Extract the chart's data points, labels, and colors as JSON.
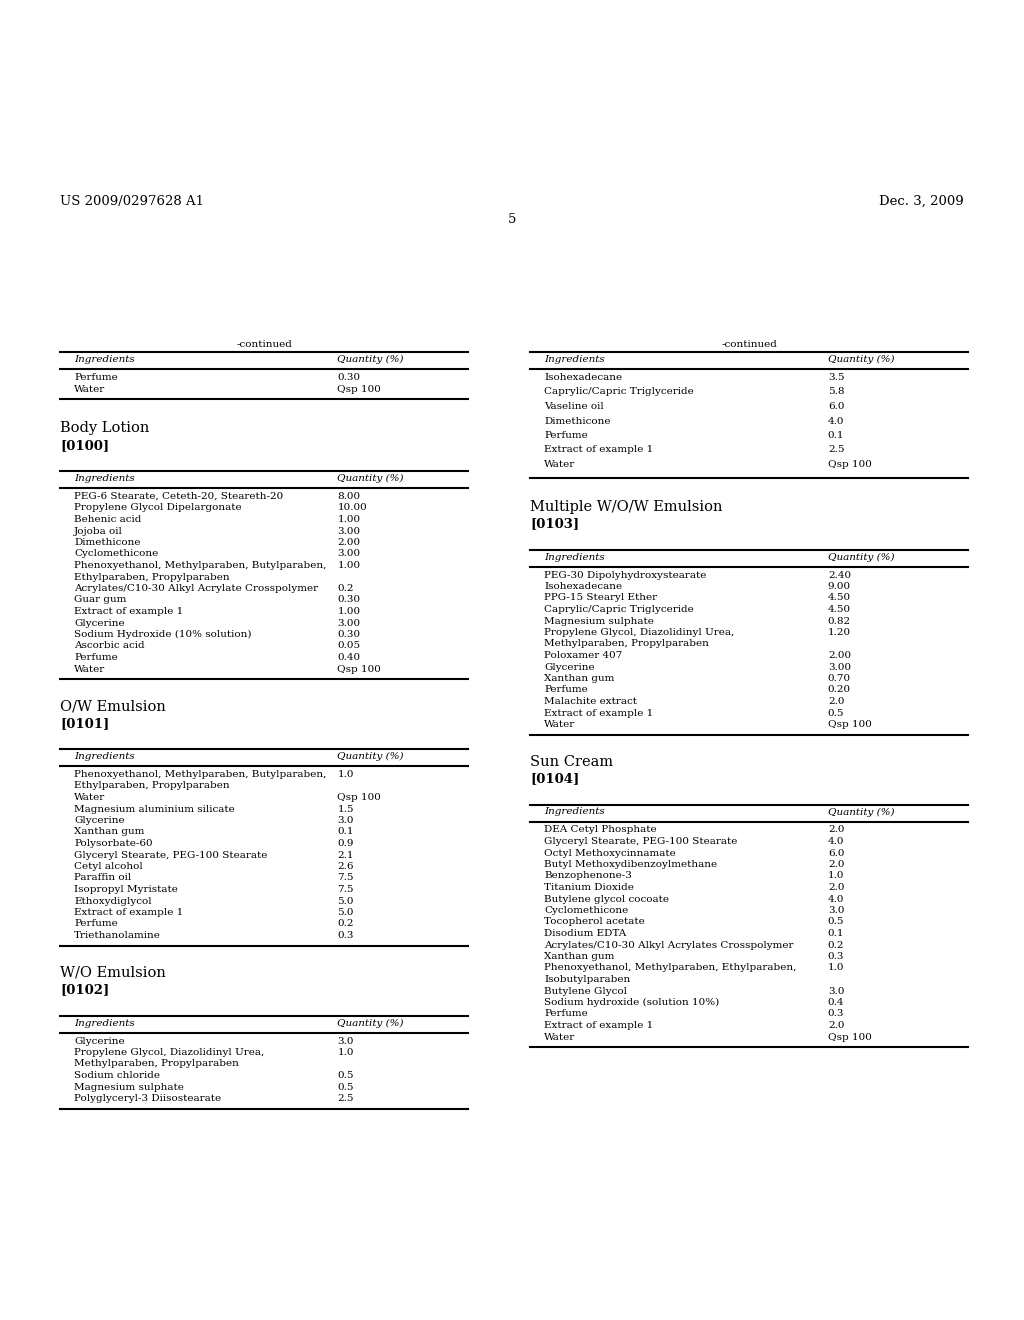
{
  "header_left": "US 2009/0297628 A1",
  "header_right": "Dec. 3, 2009",
  "page_number": "5",
  "background_color": "#ffffff",
  "text_color": "#000000",
  "left_col": {
    "continued_table": {
      "label": "-continued",
      "headers": [
        "Ingredients",
        "Quantity (%)"
      ],
      "rows": [
        [
          "Perfume",
          "0.30"
        ],
        [
          "Water",
          "Qsp 100"
        ]
      ]
    },
    "section1_title": "Body Lotion",
    "section1_ref": "[0100]",
    "table1": {
      "headers": [
        "Ingredients",
        "Quantity (%)"
      ],
      "rows": [
        [
          "PEG-6 Stearate, Ceteth-20, Steareth-20",
          "8.00"
        ],
        [
          "Propylene Glycol Dipelargonate",
          "10.00"
        ],
        [
          "Behenic acid",
          "1.00"
        ],
        [
          "Jojoba oil",
          "3.00"
        ],
        [
          "Dimethicone",
          "2.00"
        ],
        [
          "Cyclomethicone",
          "3.00"
        ],
        [
          "Phenoxyethanol, Methylparaben, Butylparaben,\nEthylparaben, Propylparaben",
          "1.00"
        ],
        [
          "Acrylates/C10-30 Alkyl Acrylate Crosspolymer",
          "0.2"
        ],
        [
          "Guar gum",
          "0.30"
        ],
        [
          "Extract of example 1",
          "1.00"
        ],
        [
          "Glycerine",
          "3.00"
        ],
        [
          "Sodium Hydroxide (10% solution)",
          "0.30"
        ],
        [
          "Ascorbic acid",
          "0.05"
        ],
        [
          "Perfume",
          "0.40"
        ],
        [
          "Water",
          "Qsp 100"
        ]
      ]
    },
    "section2_title": "O/W Emulsion",
    "section2_ref": "[0101]",
    "table2": {
      "headers": [
        "Ingredients",
        "Quantity (%)"
      ],
      "rows": [
        [
          "Phenoxyethanol, Methylparaben, Butylparaben,\nEthylparaben, Propylparaben",
          "1.0"
        ],
        [
          "Water",
          "Qsp 100"
        ],
        [
          "Magnesium aluminium silicate",
          "1.5"
        ],
        [
          "Glycerine",
          "3.0"
        ],
        [
          "Xanthan gum",
          "0.1"
        ],
        [
          "Polysorbate-60",
          "0.9"
        ],
        [
          "Glyceryl Stearate, PEG-100 Stearate",
          "2.1"
        ],
        [
          "Cetyl alcohol",
          "2.6"
        ],
        [
          "Paraffin oil",
          "7.5"
        ],
        [
          "Isopropyl Myristate",
          "7.5"
        ],
        [
          "Ethoxydiglycol",
          "5.0"
        ],
        [
          "Extract of example 1",
          "5.0"
        ],
        [
          "Perfume",
          "0.2"
        ],
        [
          "Triethanolamine",
          "0.3"
        ]
      ]
    },
    "section3_title": "W/O Emulsion",
    "section3_ref": "[0102]",
    "table3": {
      "headers": [
        "Ingredients",
        "Quantity (%)"
      ],
      "rows": [
        [
          "Glycerine",
          "3.0"
        ],
        [
          "Propylene Glycol, Diazolidinyl Urea,\nMethylparaben, Propylparaben",
          "1.0"
        ],
        [
          "Sodium chloride",
          "0.5"
        ],
        [
          "Magnesium sulphate",
          "0.5"
        ],
        [
          "Polyglyceryl-3 Diisostearate",
          "2.5"
        ]
      ]
    }
  },
  "right_col": {
    "continued_table": {
      "label": "-continued",
      "headers": [
        "Ingredients",
        "Quantity (%)"
      ],
      "rows": [
        [
          "Isohexadecane",
          "3.5"
        ],
        [
          "Caprylic/Capric Triglyceride",
          "5.8"
        ],
        [
          "Vaseline oil",
          "6.0"
        ],
        [
          "Dimethicone",
          "4.0"
        ],
        [
          "Perfume",
          "0.1"
        ],
        [
          "Extract of example 1",
          "2.5"
        ],
        [
          "Water",
          "Qsp 100"
        ]
      ]
    },
    "section1_title": "Multiple W/O/W Emulsion",
    "section1_ref": "[0103]",
    "table1": {
      "headers": [
        "Ingredients",
        "Quantity (%)"
      ],
      "rows": [
        [
          "PEG-30 Dipolyhydroxystearate",
          "2.40"
        ],
        [
          "Isohexadecane",
          "9.00"
        ],
        [
          "PPG-15 Stearyl Ether",
          "4.50"
        ],
        [
          "Caprylic/Capric Triglyceride",
          "4.50"
        ],
        [
          "Magnesium sulphate",
          "0.82"
        ],
        [
          "Propylene Glycol, Diazolidinyl Urea,\nMethylparaben, Propylparaben",
          "1.20"
        ],
        [
          "Poloxamer 407",
          "2.00"
        ],
        [
          "Glycerine",
          "3.00"
        ],
        [
          "Xanthan gum",
          "0.70"
        ],
        [
          "Perfume",
          "0.20"
        ],
        [
          "Malachite extract",
          "2.0"
        ],
        [
          "Extract of example 1",
          "0.5"
        ],
        [
          "Water",
          "Qsp 100"
        ]
      ]
    },
    "section2_title": "Sun Cream",
    "section2_ref": "[0104]",
    "table2": {
      "headers": [
        "Ingredients",
        "Quantity (%)"
      ],
      "rows": [
        [
          "DEA Cetyl Phosphate",
          "2.0"
        ],
        [
          "Glyceryl Stearate, PEG-100 Stearate",
          "4.0"
        ],
        [
          "Octyl Methoxycinnamate",
          "6.0"
        ],
        [
          "Butyl Methoxydibenzoylmethane",
          "2.0"
        ],
        [
          "Benzophenone-3",
          "1.0"
        ],
        [
          "Titanium Dioxide",
          "2.0"
        ],
        [
          "Butylene glycol cocoate",
          "4.0"
        ],
        [
          "Cyclomethicone",
          "3.0"
        ],
        [
          "Tocopherol acetate",
          "0.5"
        ],
        [
          "Disodium EDTA",
          "0.1"
        ],
        [
          "Acrylates/C10-30 Alkyl Acrylates Crosspolymer",
          "0.2"
        ],
        [
          "Xanthan gum",
          "0.3"
        ],
        [
          "Phenoxyethanol, Methylparaben, Ethylparaben,\nIsobutylparaben",
          "1.0"
        ],
        [
          "Butylene Glycol",
          "3.0"
        ],
        [
          "Sodium hydroxide (solution 10%)",
          "0.4"
        ],
        [
          "Perfume",
          "0.3"
        ],
        [
          "Extract of example 1",
          "2.0"
        ],
        [
          "Water",
          "Qsp 100"
        ]
      ]
    }
  }
}
